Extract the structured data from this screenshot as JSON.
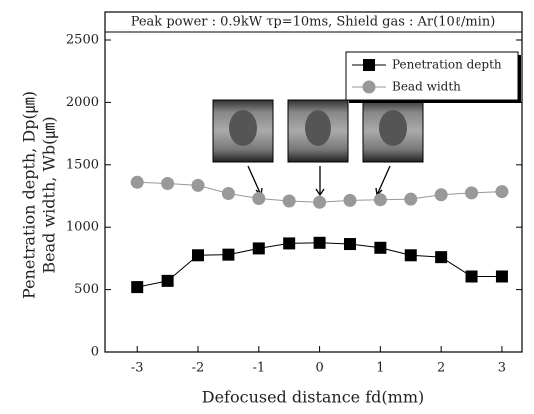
{
  "chart_data": {
    "type": "line",
    "title": "Peak power : 0.9kW τp=10ms, Shield gas : Ar(10ℓ/min)",
    "y_label": [
      "Penetration depth, Dp(㎛)",
      "Bead width, Wb(㎛)"
    ],
    "x_label": "Defocused distance fd(mm)",
    "x": [
      -3,
      -2.5,
      -2,
      -1.5,
      -1,
      -0.5,
      0,
      0.5,
      1,
      1.5,
      2,
      2.5,
      3
    ],
    "series": [
      {
        "name": "Penetration depth",
        "color": "#000000",
        "marker": "square",
        "values": [
          520,
          570,
          775,
          780,
          830,
          870,
          875,
          865,
          835,
          775,
          760,
          605,
          605
        ]
      },
      {
        "name": "Bead width",
        "color": "#999999",
        "marker": "circle",
        "values": [
          1360,
          1350,
          1335,
          1270,
          1230,
          1210,
          1200,
          1215,
          1220,
          1225,
          1260,
          1275,
          1285
        ]
      }
    ],
    "xlim": [
      -3.53,
      3.33
    ],
    "xticks": [
      -3,
      -2,
      -1,
      0,
      1,
      2,
      3
    ],
    "ylim": [
      0,
      2500
    ],
    "yticks": [
      0,
      500,
      1000,
      1500,
      2000,
      2500
    ],
    "legend": "upper right"
  }
}
